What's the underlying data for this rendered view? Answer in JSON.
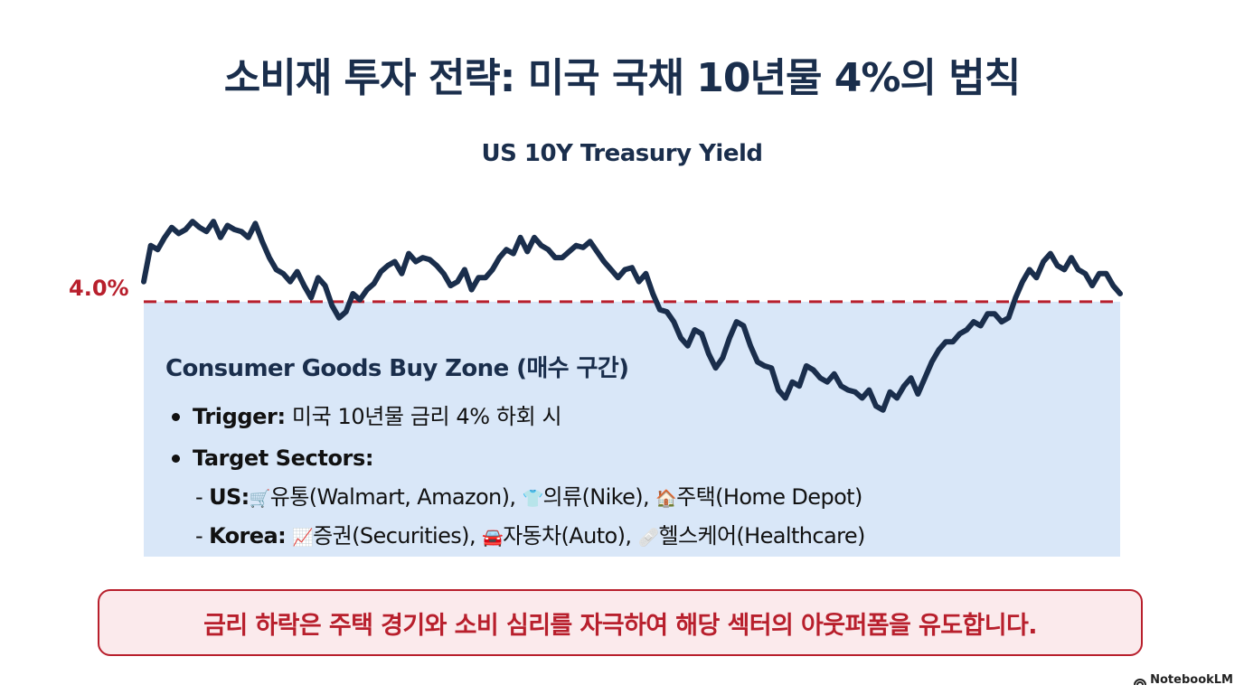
{
  "title": "소비재 투자 전략: 미국 국채 10년물 4%의 법칙",
  "chart_data": {
    "type": "line",
    "title": "US 10Y Treasury Yield",
    "threshold": {
      "value": 4.0,
      "label": "4.0%",
      "color": "#b81f2c"
    },
    "ylim": [
      3.36,
      4.54
    ],
    "xlabel": "",
    "ylabel": "",
    "series": [
      {
        "name": "US 10Y Treasury Yield",
        "color": "#1a2e4c",
        "x": [
          0,
          1,
          2,
          3,
          4,
          5,
          6,
          7,
          8,
          9,
          10,
          11,
          12,
          13,
          14,
          15,
          16,
          17,
          18,
          19,
          20,
          21,
          22,
          23,
          24,
          25,
          26,
          27,
          28,
          29,
          30,
          31,
          32,
          33,
          34,
          35,
          36,
          37,
          38,
          39,
          40,
          41,
          42,
          43,
          44,
          45,
          46,
          47,
          48,
          49,
          50,
          51,
          52,
          53,
          54,
          55,
          56,
          57,
          58,
          59,
          60,
          61,
          62,
          63,
          64,
          65,
          66,
          67,
          68,
          69,
          70,
          71,
          72,
          73,
          74,
          75,
          76,
          77,
          78,
          79,
          80,
          81,
          82,
          83,
          84,
          85,
          86,
          87,
          88,
          89,
          90,
          91,
          92,
          93,
          94,
          95,
          96,
          97,
          98,
          99,
          100,
          101,
          102,
          103,
          104,
          105,
          106,
          107,
          108,
          109,
          110,
          111,
          112,
          113,
          114,
          115,
          116,
          117,
          118,
          119,
          120,
          121,
          122,
          123,
          124,
          125,
          126,
          127,
          128,
          129,
          130,
          131,
          132,
          133,
          134,
          135,
          136,
          137,
          138,
          139,
          140
        ],
        "values": [
          4.1,
          4.28,
          4.26,
          4.32,
          4.37,
          4.34,
          4.36,
          4.4,
          4.37,
          4.35,
          4.4,
          4.32,
          4.38,
          4.36,
          4.35,
          4.32,
          4.39,
          4.3,
          4.22,
          4.16,
          4.14,
          4.1,
          4.15,
          4.08,
          4.02,
          4.12,
          4.08,
          3.98,
          3.92,
          3.95,
          4.04,
          4.01,
          4.06,
          4.09,
          4.15,
          4.18,
          4.2,
          4.14,
          4.24,
          4.2,
          4.22,
          4.21,
          4.18,
          4.14,
          4.08,
          4.1,
          4.16,
          4.06,
          4.12,
          4.12,
          4.16,
          4.22,
          4.26,
          4.24,
          4.32,
          4.25,
          4.32,
          4.28,
          4.26,
          4.22,
          4.22,
          4.25,
          4.28,
          4.27,
          4.3,
          4.25,
          4.2,
          4.16,
          4.12,
          4.16,
          4.17,
          4.1,
          4.14,
          4.04,
          3.96,
          3.95,
          3.9,
          3.82,
          3.78,
          3.86,
          3.84,
          3.74,
          3.67,
          3.72,
          3.82,
          3.9,
          3.88,
          3.78,
          3.7,
          3.68,
          3.67,
          3.56,
          3.52,
          3.6,
          3.58,
          3.68,
          3.66,
          3.62,
          3.6,
          3.64,
          3.58,
          3.56,
          3.55,
          3.52,
          3.56,
          3.48,
          3.46,
          3.55,
          3.52,
          3.58,
          3.62,
          3.54,
          3.62,
          3.7,
          3.76,
          3.8,
          3.8,
          3.84,
          3.86,
          3.9,
          3.88,
          3.94,
          3.94,
          3.9,
          3.92,
          4.02,
          4.1,
          4.16,
          4.12,
          4.2,
          4.24,
          4.18,
          4.16,
          4.22,
          4.16,
          4.14,
          4.08,
          4.14,
          4.14,
          4.08,
          4.04
        ]
      }
    ],
    "zone_color": "#d9e7f8"
  },
  "zone": {
    "title": "Consumer Goods Buy Zone (매수 구간)",
    "trigger_label": "Trigger:",
    "trigger_text": " 미국 10년물 금리 4% 하회 시",
    "sectors_label": "Target Sectors:",
    "us_prefix": "- ",
    "us_label": "US:",
    "us_items": [
      {
        "icon": "shopping-cart-icon",
        "glyph": "🛒",
        "text": "유통(Walmart, Amazon), "
      },
      {
        "icon": "tshirt-icon",
        "glyph": "👕",
        "text": "의류(Nike), "
      },
      {
        "icon": "house-icon",
        "glyph": "🏠",
        "text": "주택(Home Depot)"
      }
    ],
    "kr_prefix": "- ",
    "kr_label": "Korea:",
    "kr_items": [
      {
        "icon": "chart-increasing-icon",
        "glyph": "📈",
        "text": "증권(Securities), "
      },
      {
        "icon": "car-icon",
        "glyph": "🚘",
        "text": "자동차(Auto), "
      },
      {
        "icon": "medical-kit-icon",
        "glyph": "🩹",
        "text": "헬스케어(Healthcare)"
      }
    ]
  },
  "callout": "금리 하락은 주택 경기와 소비 심리를 자극하여 해당 섹터의 아웃퍼폼을 유도합니다.",
  "brand": "NotebookLM"
}
